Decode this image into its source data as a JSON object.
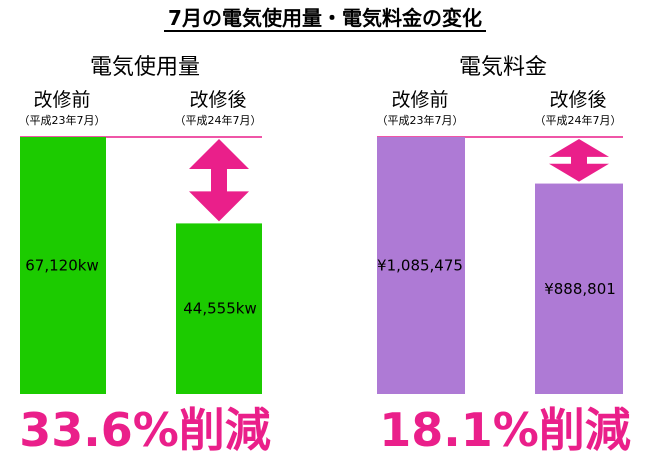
{
  "main_title": "7月の電気使用量・電気料金の変化",
  "colors": {
    "accent": "#ea1f8a",
    "usage_bar": "#1ccb00",
    "cost_bar": "#ae7ad5"
  },
  "chart_data": [
    {
      "type": "bar",
      "title": "電気使用量",
      "categories": [
        "改修前",
        "改修後"
      ],
      "category_subtitles": [
        "（平成23年7月）",
        "（平成24年7月）"
      ],
      "values": [
        67120,
        44555
      ],
      "value_labels": [
        "67,120kw",
        "44,555kw"
      ],
      "ylim": [
        0,
        67120
      ],
      "reduction_label": "33.6%削減"
    },
    {
      "type": "bar",
      "title": "電気料金",
      "categories": [
        "改修前",
        "改修後"
      ],
      "category_subtitles": [
        "（平成23年7月）",
        "（平成24年7月）"
      ],
      "values": [
        1085475,
        888801
      ],
      "value_labels": [
        "¥1,085,475",
        "¥888,801"
      ],
      "ylim": [
        0,
        1085475
      ],
      "reduction_label": "18.1%削減"
    }
  ]
}
